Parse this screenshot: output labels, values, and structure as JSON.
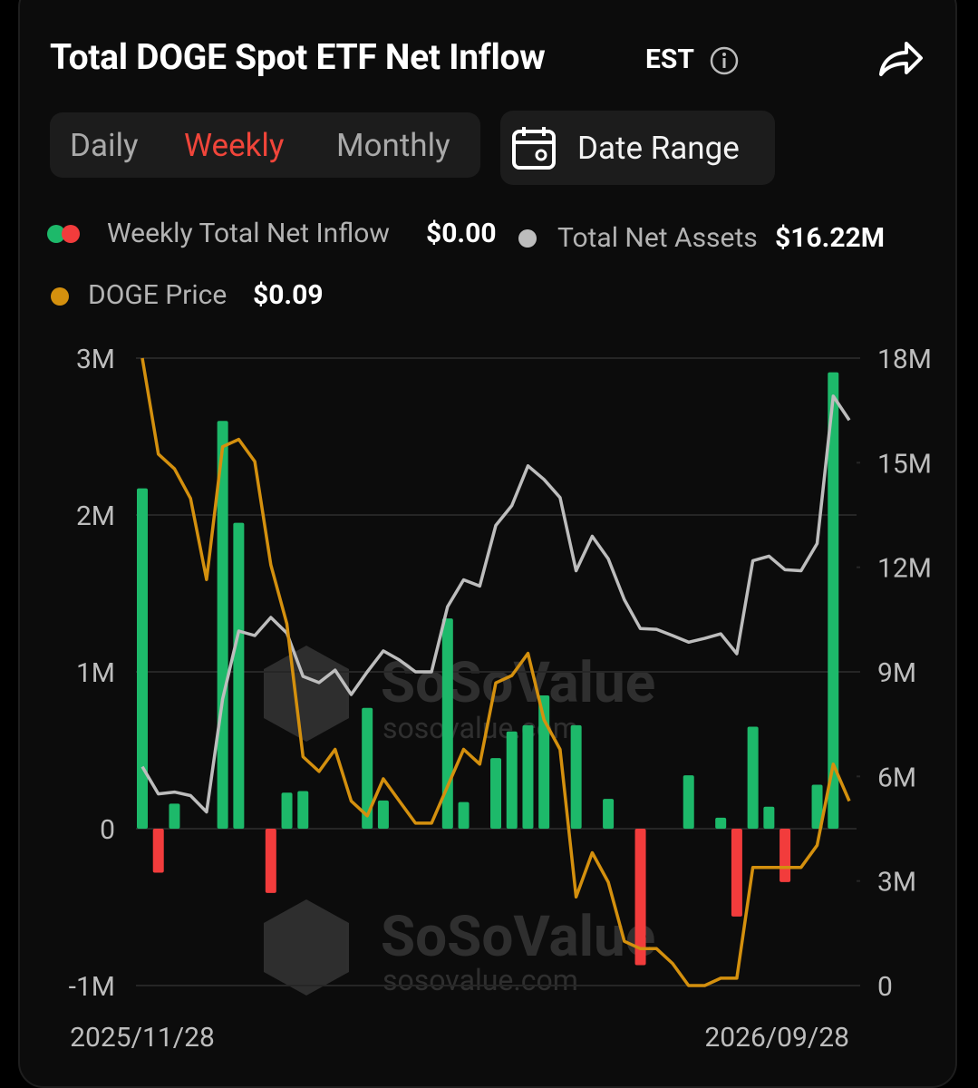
{
  "header": {
    "title": "Total DOGE Spot ETF Net Inflow",
    "timezone": "EST"
  },
  "tabs": [
    "Daily",
    "Weekly",
    "Monthly"
  ],
  "date_range": "Date Range",
  "watermark": {
    "brand": "SoSoValue",
    "site": "sosovalue.com"
  },
  "chart_data": {
    "type": "bar",
    "categories": [
      "2025/11/28",
      null,
      null,
      null,
      null,
      null,
      null,
      null,
      null,
      null,
      null,
      null,
      null,
      null,
      null,
      null,
      null,
      null,
      null,
      null,
      null,
      null,
      null,
      null,
      null,
      null,
      null,
      null,
      null,
      null,
      null,
      null,
      null,
      null,
      null,
      null,
      null,
      null,
      null,
      null,
      null,
      null,
      null,
      null,
      "2026/09/28"
    ],
    "series": [
      {
        "name": "Weekly Total Net Inflow",
        "type": "bar",
        "color": "#1db96a",
        "negative_color": "#f23c3c",
        "current": "$0.00",
        "values": [
          2.17,
          -0.28,
          0.16,
          0,
          0,
          2.6,
          1.95,
          0,
          -0.41,
          0.23,
          0.24,
          0,
          0,
          0,
          0.77,
          0.18,
          0,
          0,
          0,
          1.34,
          0.17,
          0,
          0.45,
          0.62,
          0.66,
          0.85,
          0,
          0.66,
          0,
          0.19,
          0,
          -0.87,
          0,
          0,
          0.34,
          0,
          0.07,
          -0.56,
          0.65,
          0.14,
          -0.34,
          0,
          0.28,
          2.91,
          0
        ]
      },
      {
        "name": "Total Net Assets",
        "type": "line",
        "axis": "y2",
        "color": "#bdbdbd",
        "current": "$16.22M",
        "values": [
          6.28,
          5.5,
          5.55,
          5.45,
          4.98,
          8.22,
          10.17,
          10.04,
          10.56,
          10.11,
          8.87,
          8.69,
          9.05,
          8.35,
          9.0,
          9.6,
          9.34,
          9.0,
          9.0,
          10.87,
          11.64,
          11.46,
          13.2,
          13.77,
          14.91,
          14.52,
          14.0,
          11.9,
          12.89,
          12.24,
          11.07,
          10.24,
          10.22,
          10.04,
          9.85,
          9.96,
          10.09,
          9.52,
          12.19,
          12.32,
          11.93,
          11.9,
          12.68,
          16.91,
          16.22
        ]
      },
      {
        "name": "DOGE Price",
        "type": "line",
        "axis": "hidden",
        "color": "#d4900e",
        "current": "$0.09",
        "values": [
          0.15,
          0.137,
          0.135,
          0.131,
          0.12,
          0.138,
          0.139,
          0.136,
          0.122,
          0.114,
          0.096,
          0.094,
          0.097,
          0.09,
          0.088,
          0.093,
          0.09,
          0.087,
          0.087,
          0.092,
          0.097,
          0.095,
          0.106,
          0.107,
          0.11,
          0.101,
          0.097,
          0.077,
          0.083,
          0.079,
          0.071,
          0.07,
          0.07,
          0.068,
          0.065,
          0.065,
          0.066,
          0.066,
          0.081,
          0.081,
          0.081,
          0.081,
          0.084,
          0.095,
          0.09
        ]
      }
    ],
    "ylim": [
      -1,
      3
    ],
    "yticks": [
      {
        "value": -1,
        "label": "-1M"
      },
      0,
      {
        "value": 1,
        "label": "1M"
      },
      {
        "value": 2,
        "label": "2M"
      },
      {
        "value": 3,
        "label": "3M"
      }
    ],
    "y2lim": [
      0,
      18
    ],
    "y2ticks": [
      0,
      {
        "value": 3,
        "label": "3M"
      },
      {
        "value": 6,
        "label": "6M"
      },
      {
        "value": 9,
        "label": "9M"
      },
      {
        "value": 12,
        "label": "12M"
      },
      {
        "value": 15,
        "label": "15M"
      },
      {
        "value": 18,
        "label": "18M"
      }
    ],
    "grid": true
  }
}
